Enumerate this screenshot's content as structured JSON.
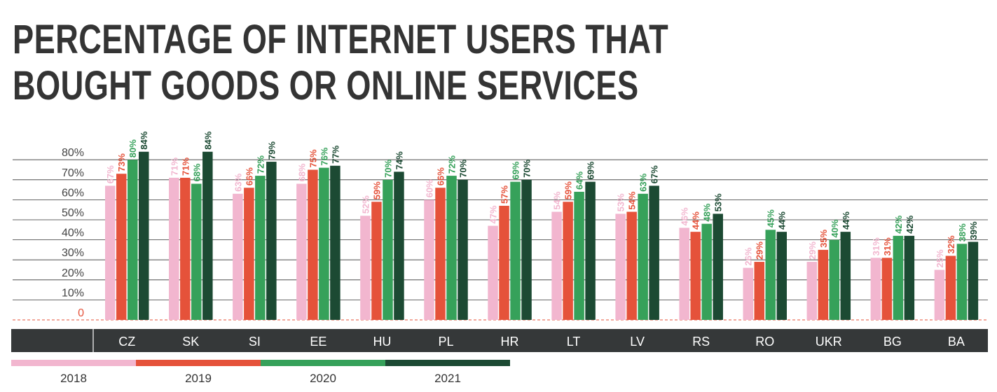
{
  "title_lines": [
    "PERCENTAGE OF INTERNET USERS THAT",
    "BOUGHT GOODS OR ONLINE SERVICES"
  ],
  "chart_data": {
    "type": "bar",
    "title": "PERCENTAGE OF INTERNET USERS THAT BOUGHT GOODS OR ONLINE SERVICES",
    "categories": [
      "CZ",
      "SK",
      "SI",
      "EE",
      "HU",
      "PL",
      "HR",
      "LT",
      "LV",
      "RS",
      "RO",
      "UKR",
      "BG",
      "BA"
    ],
    "y_ticks": [
      "0",
      "10%",
      "20%",
      "30%",
      "40%",
      "50%",
      "60%",
      "70%",
      "80%"
    ],
    "ylim": [
      0,
      80
    ],
    "grid": true,
    "legend_position": "bottom-left",
    "series": [
      {
        "name": "2018",
        "color": "#f2b6cf",
        "values": [
          67,
          71,
          63,
          68,
          52,
          60,
          47,
          54,
          53,
          46,
          26,
          29,
          31,
          25
        ]
      },
      {
        "name": "2019",
        "color": "#e5523a",
        "values": [
          73,
          71,
          66,
          75,
          59,
          66,
          57,
          59,
          54,
          44,
          29,
          35,
          31,
          32
        ]
      },
      {
        "name": "2020",
        "color": "#36a15a",
        "values": [
          80,
          68,
          72,
          76,
          70,
          72,
          69,
          64,
          63,
          48,
          45,
          40,
          42,
          38
        ]
      },
      {
        "name": "2021",
        "color": "#1c4a33",
        "values": [
          84,
          84,
          79,
          77,
          74,
          70,
          70,
          69,
          67,
          53,
          44,
          44,
          42,
          39
        ]
      }
    ]
  }
}
